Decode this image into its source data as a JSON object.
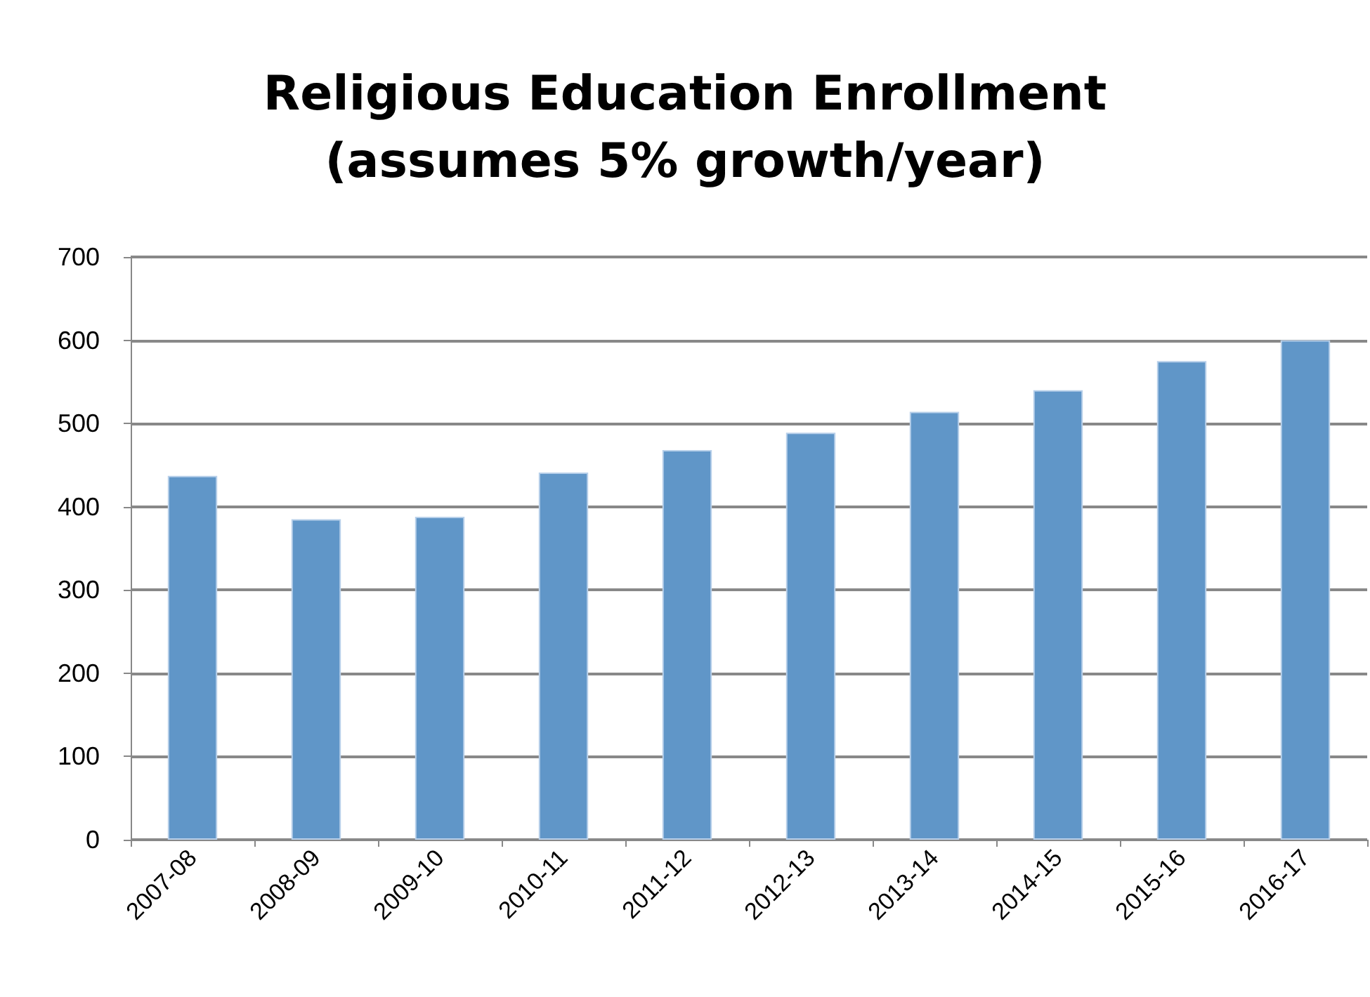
{
  "chart_data": {
    "type": "bar",
    "title": "Religious Education Enrollment\n(assumes 5% growth/year)",
    "categories": [
      "2007-08",
      "2008-09",
      "2009-10",
      "2010-11",
      "2011-12",
      "2012-13",
      "2013-14",
      "2014-15",
      "2015-16",
      "2016-17"
    ],
    "values": [
      437,
      385,
      388,
      441,
      468,
      489,
      514,
      540,
      575,
      600
    ],
    "color": "#6096c8",
    "ylim": [
      0,
      700
    ],
    "yticks": [
      0,
      100,
      200,
      300,
      400,
      500,
      600,
      700
    ],
    "grid": "y"
  }
}
